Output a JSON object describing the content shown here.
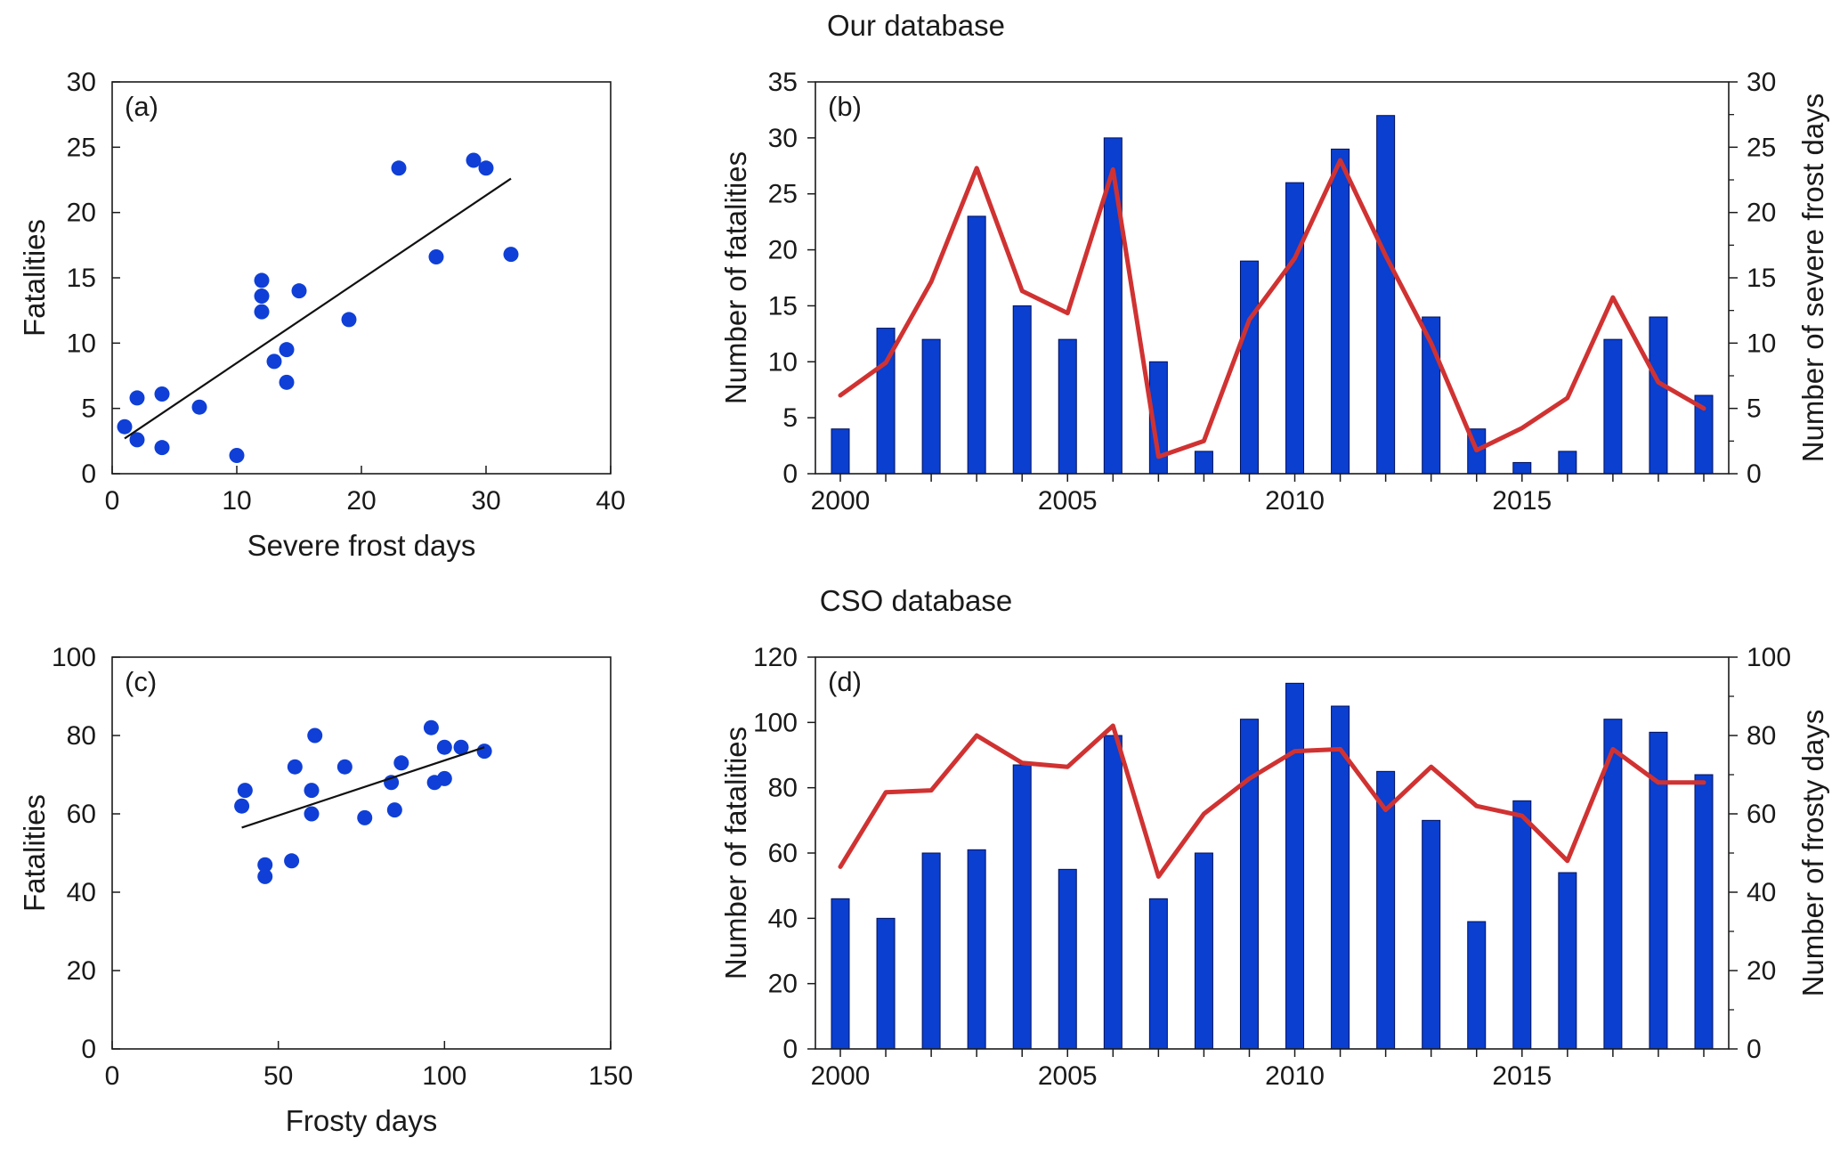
{
  "colors": {
    "bar": "#0a3fd0",
    "bar_edge": "#00105a",
    "line": "#d03232",
    "dot": "#0f3fd6",
    "axis": "#1a1a1a"
  },
  "chart_data": [
    {
      "id": "a",
      "type": "scatter",
      "panel_label": "(a)",
      "xlabel": "Severe frost days",
      "ylabel": "Fatalities",
      "xlim": [
        0,
        40
      ],
      "ylim": [
        0,
        30
      ],
      "xticks": [
        0,
        10,
        20,
        30,
        40
      ],
      "yticks": [
        0,
        5,
        10,
        15,
        20,
        25,
        30
      ],
      "points": [
        {
          "x": 1,
          "y": 3.6
        },
        {
          "x": 2,
          "y": 5.8
        },
        {
          "x": 2,
          "y": 2.6
        },
        {
          "x": 4,
          "y": 6.1
        },
        {
          "x": 4,
          "y": 2.0
        },
        {
          "x": 7,
          "y": 5.1
        },
        {
          "x": 10,
          "y": 1.4
        },
        {
          "x": 12,
          "y": 14.8
        },
        {
          "x": 12,
          "y": 13.6
        },
        {
          "x": 12,
          "y": 12.4
        },
        {
          "x": 13,
          "y": 8.6
        },
        {
          "x": 14,
          "y": 9.5
        },
        {
          "x": 14,
          "y": 7.0
        },
        {
          "x": 15,
          "y": 14.0
        },
        {
          "x": 19,
          "y": 11.8
        },
        {
          "x": 23,
          "y": 23.4
        },
        {
          "x": 26,
          "y": 16.6
        },
        {
          "x": 29,
          "y": 24.0
        },
        {
          "x": 30,
          "y": 23.4
        },
        {
          "x": 32,
          "y": 16.8
        }
      ],
      "trendline": {
        "x": [
          1,
          32
        ],
        "y": [
          2.7,
          22.6
        ]
      }
    },
    {
      "id": "b",
      "type": "bar+line",
      "title": "Our database",
      "panel_label": "(b)",
      "ylabel": "Number of fatalities",
      "ylabel_right": "Number of severe frost  days",
      "x": [
        2000,
        2001,
        2002,
        2003,
        2004,
        2005,
        2006,
        2007,
        2008,
        2009,
        2010,
        2011,
        2012,
        2013,
        2014,
        2015,
        2016,
        2017,
        2018,
        2019
      ],
      "xlim": [
        2000,
        2019
      ],
      "xticks": [
        2000,
        2005,
        2010,
        2015
      ],
      "ylim": [
        0,
        35
      ],
      "yticks": [
        0,
        5,
        10,
        15,
        20,
        25,
        30,
        35
      ],
      "ylim_right": [
        0,
        30
      ],
      "yticks_right": [
        0,
        5,
        10,
        15,
        20,
        25,
        30
      ],
      "series": [
        {
          "name": "Number of fatalities",
          "kind": "bar",
          "axis": "left",
          "values": [
            4,
            13,
            12,
            23,
            15,
            12,
            30,
            10,
            2,
            19,
            26,
            29,
            32,
            14,
            4,
            1,
            2,
            12,
            14,
            7
          ]
        },
        {
          "name": "Number of severe frost days",
          "kind": "line",
          "axis": "right",
          "values": [
            6,
            8.5,
            14.7,
            23.4,
            14.0,
            12.3,
            23.3,
            1.3,
            2.5,
            11.8,
            16.5,
            24.0,
            16.7,
            10.0,
            1.8,
            3.5,
            5.8,
            13.5,
            7.0,
            5.0
          ]
        }
      ]
    },
    {
      "id": "c",
      "type": "scatter",
      "panel_label": "(c)",
      "xlabel": "Frosty days",
      "ylabel": "Fatalities",
      "xlim": [
        0,
        150
      ],
      "ylim": [
        0,
        100
      ],
      "xticks": [
        0,
        50,
        100,
        150
      ],
      "yticks": [
        0,
        20,
        40,
        60,
        80,
        100
      ],
      "points": [
        {
          "x": 39,
          "y": 62
        },
        {
          "x": 40,
          "y": 66
        },
        {
          "x": 46,
          "y": 47
        },
        {
          "x": 46,
          "y": 44
        },
        {
          "x": 54,
          "y": 48
        },
        {
          "x": 55,
          "y": 72
        },
        {
          "x": 60,
          "y": 66
        },
        {
          "x": 60,
          "y": 60
        },
        {
          "x": 61,
          "y": 80
        },
        {
          "x": 70,
          "y": 72
        },
        {
          "x": 76,
          "y": 59
        },
        {
          "x": 84,
          "y": 68
        },
        {
          "x": 85,
          "y": 61
        },
        {
          "x": 87,
          "y": 73
        },
        {
          "x": 96,
          "y": 82
        },
        {
          "x": 97,
          "y": 68
        },
        {
          "x": 100,
          "y": 77
        },
        {
          "x": 100,
          "y": 69
        },
        {
          "x": 105,
          "y": 77
        },
        {
          "x": 112,
          "y": 76
        }
      ],
      "trendline": {
        "x": [
          39,
          112
        ],
        "y": [
          56.5,
          77
        ]
      }
    },
    {
      "id": "d",
      "type": "bar+line",
      "title": "CSO database",
      "panel_label": "(d)",
      "ylabel": "Number of fatalities",
      "ylabel_right": "Number of frosty  days",
      "x": [
        2000,
        2001,
        2002,
        2003,
        2004,
        2005,
        2006,
        2007,
        2008,
        2009,
        2010,
        2011,
        2012,
        2013,
        2014,
        2015,
        2016,
        2017,
        2018,
        2019
      ],
      "xlim": [
        2000,
        2019
      ],
      "xticks": [
        2000,
        2005,
        2010,
        2015
      ],
      "ylim": [
        0,
        120
      ],
      "yticks": [
        0,
        20,
        40,
        60,
        80,
        100,
        120
      ],
      "ylim_right": [
        0,
        100
      ],
      "yticks_right": [
        0,
        20,
        40,
        60,
        80,
        100
      ],
      "series": [
        {
          "name": "Number of fatalities",
          "kind": "bar",
          "axis": "left",
          "values": [
            46,
            40,
            60,
            61,
            87,
            55,
            96,
            46,
            60,
            101,
            112,
            105,
            85,
            70,
            39,
            76,
            54,
            101,
            97,
            84
          ]
        },
        {
          "name": "Number of frosty days",
          "kind": "line",
          "axis": "right",
          "values": [
            46.5,
            65.5,
            66,
            80,
            73,
            72,
            82.5,
            44,
            60,
            69,
            76,
            76.5,
            61,
            72,
            62,
            59.5,
            48,
            76.5,
            68,
            68
          ]
        }
      ]
    }
  ]
}
